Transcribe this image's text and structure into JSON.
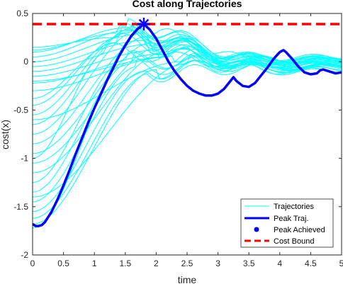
{
  "chart_data": {
    "type": "line",
    "title": "Cost along Trajectories",
    "xlabel": "time",
    "ylabel": "cost(x)",
    "xlim": [
      0,
      5
    ],
    "ylim": [
      -2,
      0.5
    ],
    "grid": false,
    "x_ticks": [
      "0",
      "0.5",
      "1",
      "1.5",
      "2",
      "2.5",
      "3",
      "3.5",
      "4",
      "4.5",
      "5"
    ],
    "y_ticks": [
      "-2",
      "-1.5",
      "-1",
      "-0.5",
      "0",
      "0.5"
    ],
    "legend": {
      "position": "bottom-right",
      "entries": [
        "Trajectories",
        "Peak Traj.",
        "Peak Achieved",
        "Cost Bound"
      ]
    },
    "colors": {
      "trajectories": "#00ffff",
      "peak": "#0000ff",
      "bound": "#ff0000"
    },
    "series": [
      {
        "name": "Trajectories",
        "start_values": [
          0.15,
          0.12,
          0.1,
          0.05,
          0.0,
          -0.05,
          -0.1,
          -0.15,
          -0.22,
          -0.3,
          -0.38,
          -0.45,
          -0.55,
          -0.65,
          -0.75,
          -0.85,
          -0.95,
          -1.05,
          -1.15,
          -1.25,
          -1.35,
          -1.45,
          -1.55,
          -1.62,
          -1.68,
          -1.72,
          -0.2,
          -0.6,
          -1.0,
          -1.4
        ],
        "peak_times": [
          1.3,
          1.4,
          1.5,
          1.6,
          1.7,
          1.8,
          1.9,
          2.0,
          2.1,
          2.2,
          1.35,
          1.45,
          1.55,
          1.65,
          1.75,
          1.85,
          1.95,
          2.05,
          2.15,
          1.5,
          1.6,
          1.7,
          1.8,
          1.9,
          2.0,
          1.75,
          2.3,
          2.4,
          1.2,
          2.5
        ],
        "peak_values": [
          0.25,
          0.3,
          0.35,
          0.33,
          0.28,
          0.22,
          0.18,
          0.12,
          0.08,
          0.05,
          0.2,
          0.27,
          0.31,
          0.36,
          0.34,
          0.26,
          0.2,
          0.15,
          0.1,
          0.02,
          0.0,
          -0.05,
          -0.1,
          -0.12,
          -0.08,
          0.3,
          0.06,
          0.0,
          0.1,
          -0.02
        ],
        "end_values": [
          -0.02,
          0.0,
          0.02,
          -0.05,
          -0.08,
          0.04,
          0.03,
          -0.03,
          -0.1,
          0.05,
          -0.06,
          0.01,
          -0.04,
          0.02,
          -0.07,
          0.0,
          -0.02,
          0.03,
          -0.09,
          -0.03,
          0.01,
          -0.05,
          0.02,
          -0.06,
          -0.01,
          0.0,
          -0.04,
          0.02,
          -0.03,
          -0.08
        ]
      },
      {
        "name": "Peak Traj.",
        "x": [
          0,
          0.05,
          0.1,
          0.15,
          0.2,
          0.3,
          0.4,
          0.5,
          0.6,
          0.7,
          0.8,
          0.9,
          1.0,
          1.1,
          1.2,
          1.3,
          1.4,
          1.5,
          1.6,
          1.7,
          1.8,
          1.9,
          2.0,
          2.1,
          2.2,
          2.3,
          2.4,
          2.5,
          2.6,
          2.7,
          2.8,
          2.9,
          3.0,
          3.1,
          3.2,
          3.25,
          3.3,
          3.4,
          3.5,
          3.6,
          3.7,
          3.8,
          3.9,
          4.0,
          4.06,
          4.1,
          4.2,
          4.3,
          4.4,
          4.5,
          4.6,
          4.65,
          4.7,
          4.8,
          4.9,
          5.0
        ],
        "y": [
          -1.68,
          -1.7,
          -1.7,
          -1.69,
          -1.66,
          -1.56,
          -1.43,
          -1.28,
          -1.12,
          -0.95,
          -0.79,
          -0.63,
          -0.48,
          -0.34,
          -0.2,
          -0.07,
          0.06,
          0.17,
          0.27,
          0.34,
          0.39,
          0.33,
          0.24,
          0.12,
          0.0,
          -0.1,
          -0.18,
          -0.25,
          -0.3,
          -0.33,
          -0.35,
          -0.35,
          -0.33,
          -0.28,
          -0.2,
          -0.16,
          -0.2,
          -0.25,
          -0.26,
          -0.22,
          -0.14,
          -0.06,
          0.03,
          0.1,
          0.12,
          0.1,
          0.03,
          -0.05,
          -0.11,
          -0.13,
          -0.12,
          -0.09,
          -0.08,
          -0.1,
          -0.12,
          -0.11
        ]
      },
      {
        "name": "Peak Achieved",
        "x": [
          1.8
        ],
        "y": [
          0.39
        ]
      },
      {
        "name": "Cost Bound",
        "x": [
          0,
          5
        ],
        "y": [
          0.39,
          0.39
        ]
      }
    ]
  }
}
